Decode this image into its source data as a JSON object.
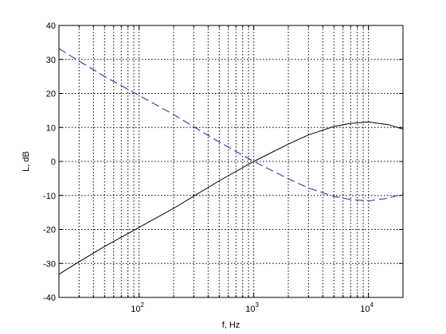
{
  "chart_data": {
    "type": "line",
    "title": "",
    "xlabel": "f, Hz",
    "ylabel": "L, dB",
    "xscale": "log",
    "xlim": [
      20,
      20000
    ],
    "ylim": [
      -40,
      40
    ],
    "grid": true,
    "x_ticks": [
      {
        "value": 100,
        "base": "10",
        "exp": "2"
      },
      {
        "value": 1000,
        "base": "10",
        "exp": "3"
      },
      {
        "value": 10000,
        "base": "10",
        "exp": "4"
      }
    ],
    "y_ticks": [
      40,
      30,
      20,
      10,
      0,
      -10,
      -20,
      -30,
      -40
    ],
    "series": [
      {
        "style": "solid",
        "color": "#000000",
        "x": [
          20,
          30,
          50,
          100,
          200,
          300,
          500,
          1000,
          2000,
          3000,
          5000,
          7000,
          10000,
          15000,
          20000
        ],
        "y": [
          -33.2,
          -29.5,
          -25,
          -19.4,
          -13.8,
          -10.2,
          -5.7,
          0,
          5.1,
          7.8,
          10.3,
          11.2,
          11.6,
          10.8,
          9.5
        ]
      },
      {
        "style": "dashed",
        "color": "#1f1f9e",
        "x": [
          20,
          30,
          50,
          100,
          200,
          300,
          500,
          1000,
          2000,
          3000,
          5000,
          7000,
          10000,
          15000,
          20000
        ],
        "y": [
          33.2,
          29.5,
          25,
          19.4,
          13.8,
          10.2,
          5.7,
          0,
          -5.1,
          -7.8,
          -10.3,
          -11.2,
          -11.6,
          -10.8,
          -9.5
        ]
      }
    ]
  }
}
